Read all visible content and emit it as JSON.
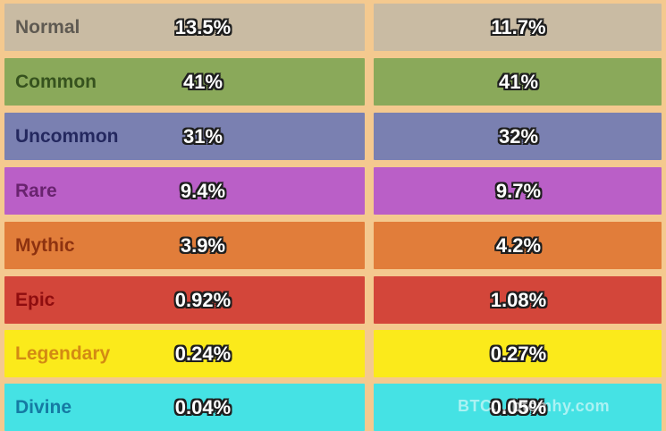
{
  "rows": [
    {
      "label": "Normal",
      "left_value": "13.5%",
      "right_value": "11.7%",
      "bg": "#c9bba3",
      "label_color": "#5f5a52"
    },
    {
      "label": "Common",
      "left_value": "41%",
      "right_value": "41%",
      "bg": "#8aa95a",
      "label_color": "#36521e"
    },
    {
      "label": "Uncommon",
      "left_value": "31%",
      "right_value": "32%",
      "bg": "#7a80b1",
      "label_color": "#24285f"
    },
    {
      "label": "Rare",
      "left_value": "9.4%",
      "right_value": "9.7%",
      "bg": "#ba5fc7",
      "label_color": "#69236f"
    },
    {
      "label": "Mythic",
      "left_value": "3.9%",
      "right_value": "4.2%",
      "bg": "#e17d3a",
      "label_color": "#8d3210"
    },
    {
      "label": "Epic",
      "left_value": "0.92%",
      "right_value": "1.08%",
      "bg": "#d3463a",
      "label_color": "#8f0d0f"
    },
    {
      "label": "Legendary",
      "left_value": "0.24%",
      "right_value": "0.27%",
      "bg": "#fbea1b",
      "label_color": "#d38a13"
    },
    {
      "label": "Divine",
      "left_value": "0.04%",
      "right_value": "0.05%",
      "bg": "#45e2e4",
      "label_color": "#157aa3"
    }
  ],
  "watermark": "BTC... btcmhy.com"
}
